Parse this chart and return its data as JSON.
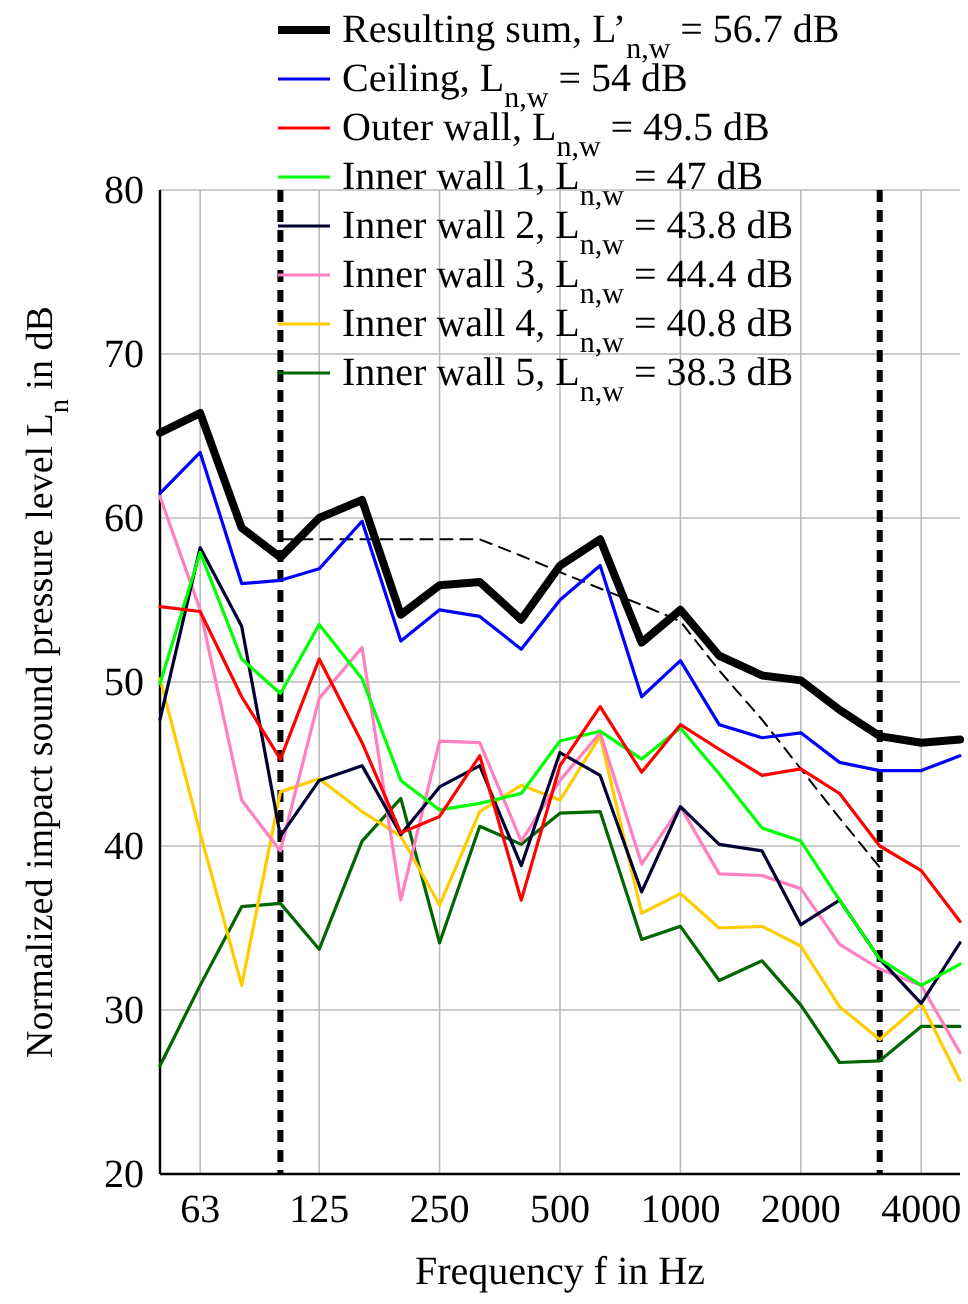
{
  "chart_data": {
    "type": "line",
    "xlabel": "Frequency f in Hz",
    "ylabel": "Normalized impact sound pressure level L$_{n}$ in dB",
    "x": [
      50,
      63,
      80,
      100,
      125,
      160,
      200,
      250,
      315,
      400,
      500,
      630,
      800,
      1000,
      1250,
      1600,
      2000,
      2500,
      3150,
      4000,
      5000
    ],
    "log": "x",
    "xlim": [
      50,
      5000
    ],
    "xticks": [
      63,
      125,
      250,
      500,
      1000,
      2000,
      4000
    ],
    "ylim": [
      20,
      80
    ],
    "yticks": [
      20,
      30,
      40,
      50,
      60,
      70,
      80
    ],
    "grid": true,
    "legend": "top right",
    "line_style": "solid",
    "marker": "none",
    "series": [
      {
        "name": "Resulting sum, L’$_{n,w}$ = 56.7 dB",
        "color": "#000000",
        "values": [
          65.2,
          66.4,
          59.4,
          57.6,
          60.0,
          61.1,
          54.1,
          55.9,
          56.1,
          53.8,
          57.1,
          58.7,
          52.4,
          54.4,
          51.6,
          50.4,
          50.1,
          48.3,
          46.7,
          46.3,
          46.5
        ]
      },
      {
        "name": "Ceiling, L$_{n,w}$ = 54 dB",
        "color": "#0000ff",
        "values": [
          61.5,
          64.0,
          56.0,
          56.2,
          56.9,
          59.8,
          52.5,
          54.4,
          54.0,
          52.0,
          55.0,
          57.1,
          49.1,
          51.3,
          47.4,
          46.6,
          46.9,
          45.1,
          44.6,
          44.6,
          45.5
        ]
      },
      {
        "name": "Outer wall, L$_{n,w}$ = 49.5 dB",
        "color": "#ff0000",
        "values": [
          54.6,
          54.3,
          49.1,
          45.3,
          51.4,
          46.3,
          40.8,
          41.8,
          45.5,
          36.7,
          44.9,
          48.5,
          44.5,
          47.4,
          45.9,
          44.3,
          44.7,
          43.2,
          40.0,
          38.5,
          35.4
        ]
      },
      {
        "name": "Inner wall 1, L$_{n,w}$ = 47 dB",
        "color": "#00ff00",
        "values": [
          49.9,
          57.9,
          51.4,
          49.3,
          53.5,
          50.2,
          44.0,
          42.2,
          42.6,
          43.2,
          46.4,
          47.0,
          45.3,
          47.2,
          44.4,
          41.1,
          40.3,
          36.7,
          33.1,
          31.5,
          32.8
        ]
      },
      {
        "name": "Inner wall 2, L$_{n,w}$ = 43.8 dB",
        "color": "#000033",
        "values": [
          47.7,
          58.2,
          53.4,
          40.6,
          44.0,
          44.9,
          40.7,
          43.6,
          44.9,
          38.8,
          45.7,
          44.3,
          37.2,
          42.4,
          40.1,
          39.7,
          35.2,
          36.7,
          33.1,
          30.4,
          34.1
        ]
      },
      {
        "name": "Inner wall 3, L$_{n,w}$ = 44.4 dB",
        "color": "#ff7fbf",
        "values": [
          61.3,
          54.4,
          42.8,
          39.7,
          49.0,
          52.1,
          36.7,
          46.4,
          46.3,
          40.3,
          44.0,
          46.9,
          38.9,
          42.4,
          38.3,
          38.2,
          37.4,
          34.0,
          32.5,
          31.5,
          27.4
        ]
      },
      {
        "name": "Inner wall 4, L$_{n,w}$ = 40.8 dB",
        "color": "#ffcc00",
        "values": [
          50.2,
          40.8,
          31.5,
          43.3,
          44.1,
          42.1,
          40.6,
          36.4,
          42.1,
          43.7,
          42.8,
          46.7,
          35.9,
          37.1,
          35.0,
          35.1,
          33.9,
          30.2,
          28.2,
          30.4,
          25.7
        ]
      },
      {
        "name": "Inner wall 5, L$_{n,w}$ = 38.3 dB",
        "color": "#006600",
        "values": [
          26.6,
          31.5,
          36.3,
          36.5,
          33.7,
          40.3,
          42.9,
          34.1,
          41.2,
          40.1,
          42.0,
          42.1,
          34.3,
          35.1,
          31.8,
          33.0,
          30.3,
          26.8,
          26.9,
          29.0,
          29.0
        ]
      },
      {
        "type": "line",
        "line_style": "dashed",
        "color": "#000000",
        "x": [
          100,
          125,
          160,
          200,
          250,
          315,
          400,
          500,
          630,
          800,
          1000,
          1250,
          1600,
          2000,
          2500,
          3150
        ],
        "values": [
          58.7,
          58.7,
          58.7,
          58.7,
          58.7,
          58.7,
          57.7,
          56.7,
          55.7,
          54.7,
          53.7,
          50.7,
          47.7,
          44.7,
          41.7,
          38.7
        ]
      }
    ],
    "ref_lines": [
      {
        "axis": "x",
        "value": 100,
        "label": null,
        "color": "#000000",
        "line_style": "dashed"
      },
      {
        "axis": "x",
        "value": 3150,
        "label": null,
        "color": "#000000",
        "line_style": "dashed"
      }
    ]
  }
}
